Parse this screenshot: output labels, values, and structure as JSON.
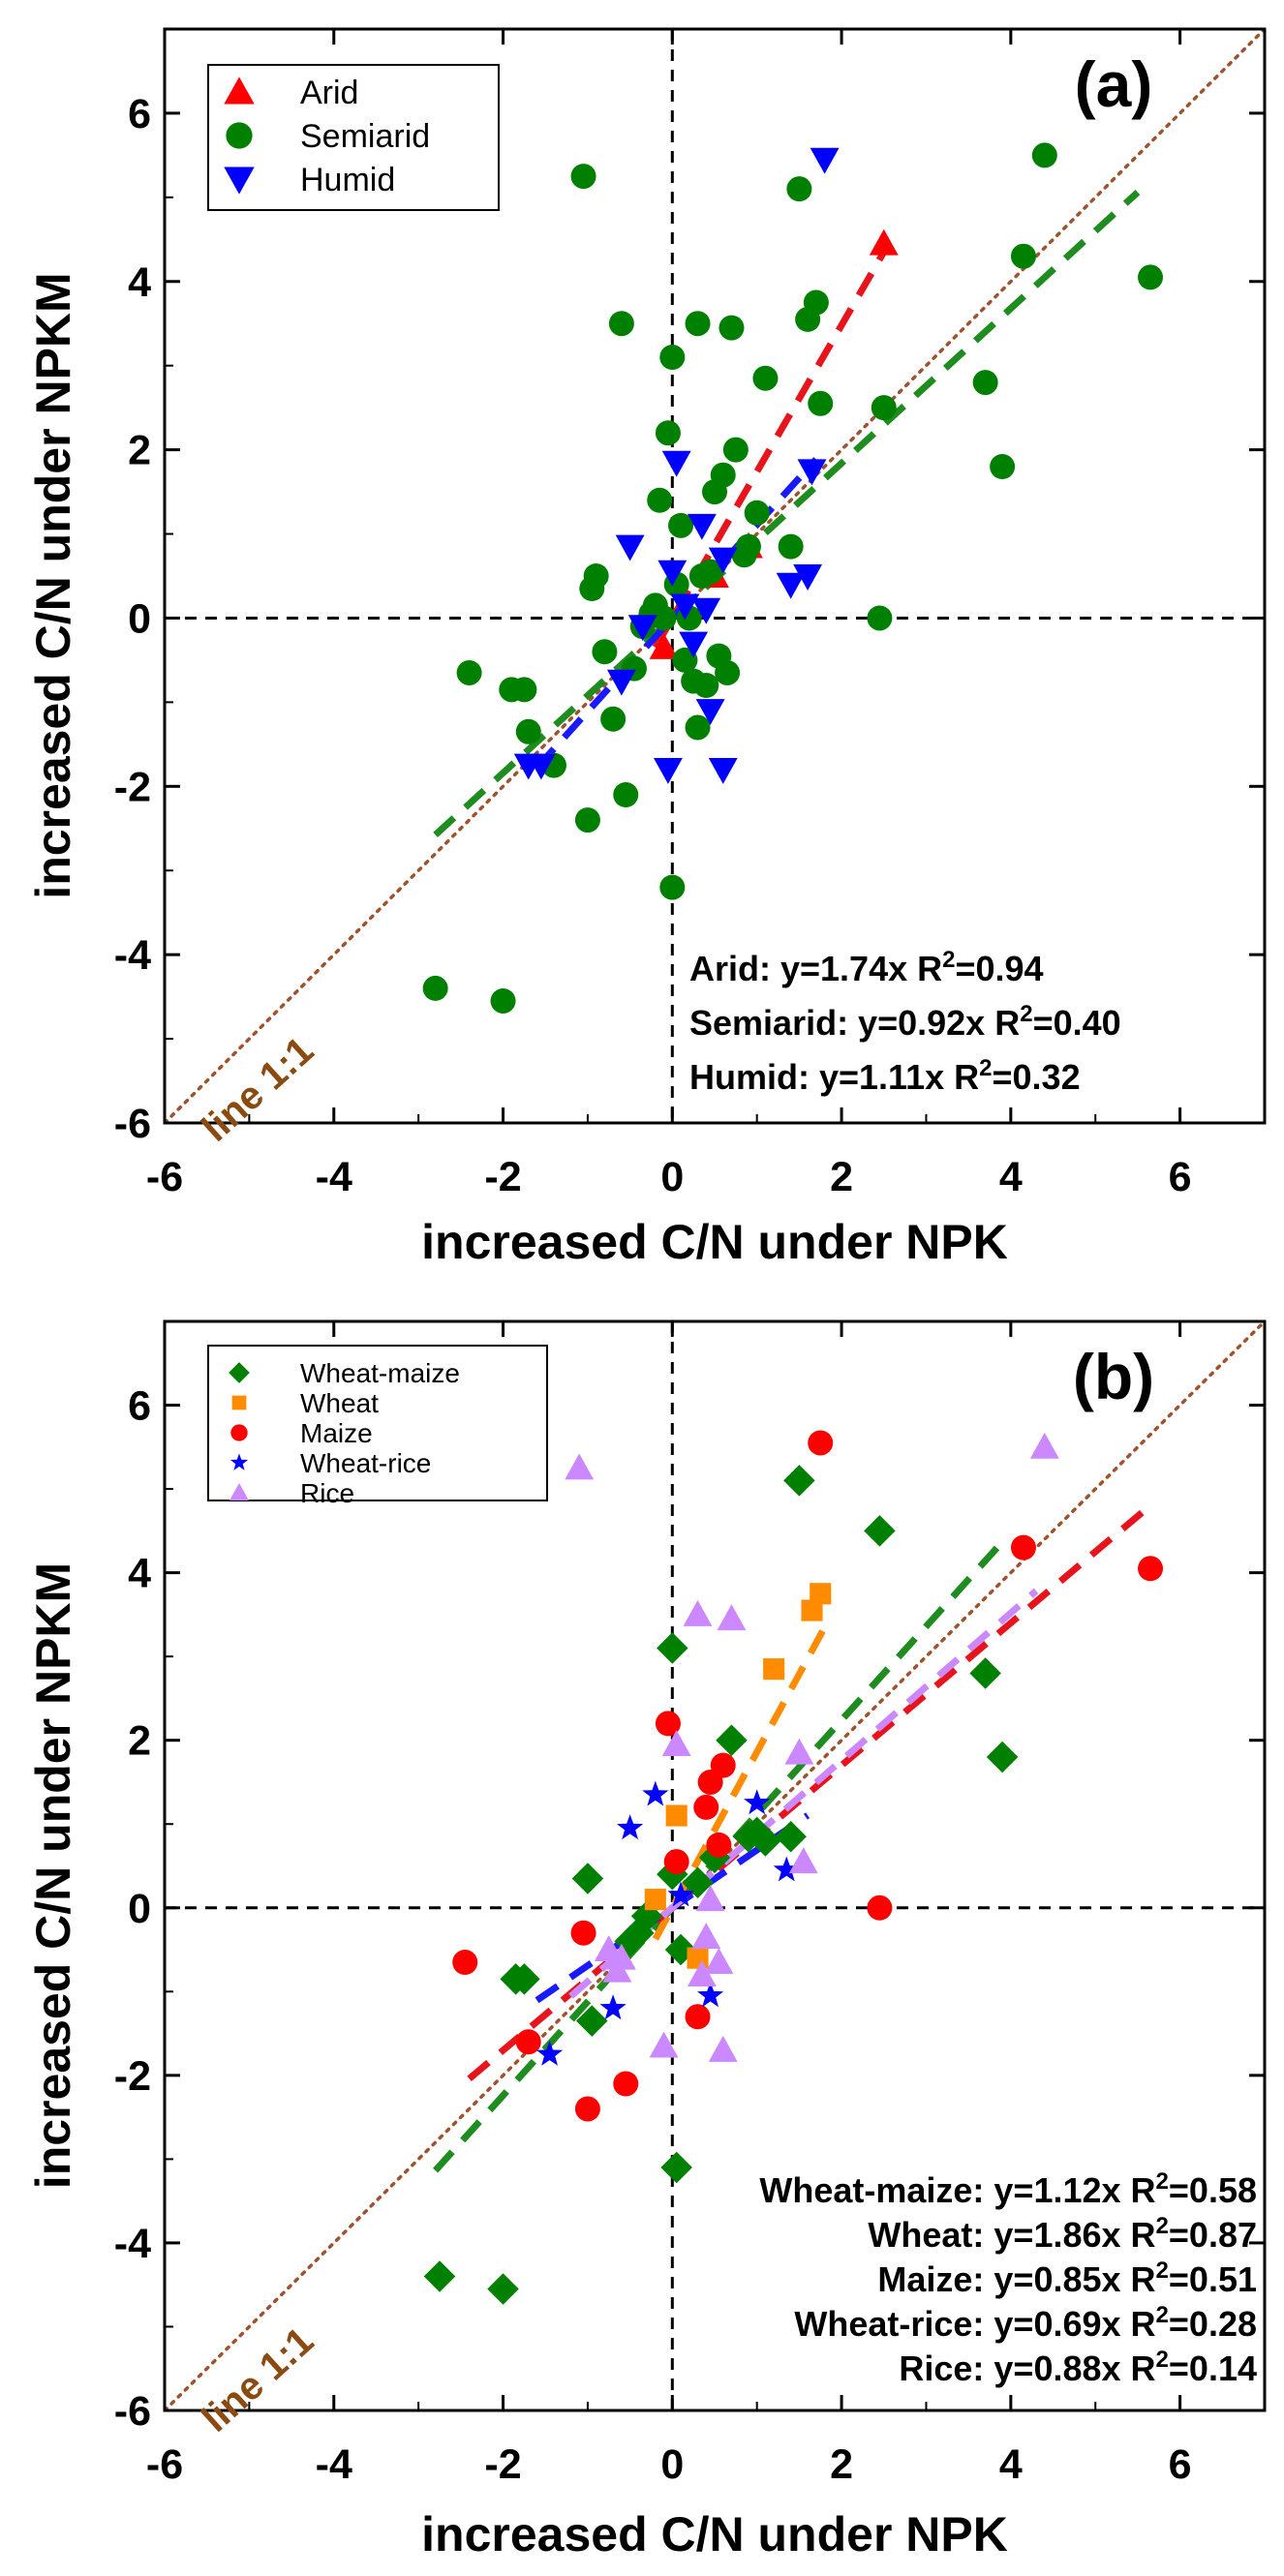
{
  "chart_data": [
    {
      "type": "scatter",
      "panel_label": "(a)",
      "xlabel": "increased C/N under NPK",
      "ylabel": "increased C/N under NPKM",
      "xlim": [
        -6,
        7
      ],
      "ylim": [
        -6,
        7
      ],
      "xticks": [
        "-6",
        "-4",
        "-2",
        "0",
        "2",
        "4",
        "6"
      ],
      "yticks": [
        "-6",
        "-4",
        "-2",
        "0",
        "2",
        "4",
        "6"
      ],
      "one_to_one_label": "line 1:1",
      "legend_position": "top-left",
      "colors": {
        "one_to_one": "#a0522d",
        "zero_lines": "#000000"
      },
      "series": [
        {
          "name": "Arid",
          "marker": "triangle-up",
          "color": "#ff0000",
          "fit_color": "#e8141c",
          "slope": 1.74,
          "fit_x_range": [
            -0.2,
            2.5
          ],
          "equation": "Arid: y=1.74x R",
          "r2_value": "=0.94",
          "points": [
            [
              2.5,
              4.45
            ],
            [
              0.5,
              0.5
            ],
            [
              0.9,
              0.85
            ],
            [
              -0.1,
              -0.35
            ]
          ]
        },
        {
          "name": "Semiarid",
          "marker": "circle",
          "color": "#008000",
          "fit_color": "#1e8c1e",
          "slope": 0.92,
          "fit_x_range": [
            -2.8,
            5.5
          ],
          "equation": "Semiarid: y=0.92x R",
          "r2_value": "=0.40",
          "points": [
            [
              -2.8,
              -4.4
            ],
            [
              -2.0,
              -4.55
            ],
            [
              -2.4,
              -0.65
            ],
            [
              -1.9,
              -0.85
            ],
            [
              -1.75,
              -0.85
            ],
            [
              -1.7,
              -1.35
            ],
            [
              -1.4,
              -1.75
            ],
            [
              -1.05,
              5.25
            ],
            [
              -1.0,
              -2.4
            ],
            [
              -0.95,
              0.35
            ],
            [
              -0.9,
              0.5
            ],
            [
              -0.8,
              -0.4
            ],
            [
              -0.7,
              -1.2
            ],
            [
              -0.6,
              3.5
            ],
            [
              -0.55,
              -2.1
            ],
            [
              -0.45,
              -0.6
            ],
            [
              -0.35,
              -0.1
            ],
            [
              -0.25,
              0.05
            ],
            [
              -0.2,
              0.15
            ],
            [
              -0.15,
              1.4
            ],
            [
              -0.1,
              0.0
            ],
            [
              -0.05,
              2.2
            ],
            [
              0.0,
              3.1
            ],
            [
              0.0,
              -3.2
            ],
            [
              0.05,
              0.4
            ],
            [
              0.1,
              1.1
            ],
            [
              0.15,
              -0.5
            ],
            [
              0.2,
              0.0
            ],
            [
              0.25,
              -0.75
            ],
            [
              0.3,
              3.5
            ],
            [
              0.3,
              -1.3
            ],
            [
              0.35,
              0.5
            ],
            [
              0.4,
              -0.8
            ],
            [
              0.45,
              0.55
            ],
            [
              0.5,
              1.5
            ],
            [
              0.55,
              -0.45
            ],
            [
              0.6,
              1.7
            ],
            [
              0.65,
              -0.65
            ],
            [
              0.7,
              3.45
            ],
            [
              0.75,
              2.0
            ],
            [
              0.85,
              0.75
            ],
            [
              0.9,
              0.85
            ],
            [
              1.0,
              1.25
            ],
            [
              1.1,
              2.85
            ],
            [
              1.4,
              0.85
            ],
            [
              1.5,
              5.1
            ],
            [
              1.6,
              3.55
            ],
            [
              1.7,
              3.75
            ],
            [
              1.75,
              2.55
            ],
            [
              2.45,
              0.0
            ],
            [
              2.5,
              2.5
            ],
            [
              3.7,
              2.8
            ],
            [
              3.9,
              1.8
            ],
            [
              4.15,
              4.3
            ],
            [
              4.4,
              5.5
            ],
            [
              5.65,
              4.05
            ]
          ]
        },
        {
          "name": "Humid",
          "marker": "triangle-down",
          "color": "#0000ff",
          "fit_color": "#1a1aff",
          "slope": 1.11,
          "fit_x_range": [
            -1.6,
            1.7
          ],
          "equation": "Humid: y=1.11x R",
          "r2_value": "=0.32",
          "points": [
            [
              -1.7,
              -1.75
            ],
            [
              -1.55,
              -1.75
            ],
            [
              -0.6,
              -0.75
            ],
            [
              -0.5,
              0.85
            ],
            [
              -0.35,
              -0.1
            ],
            [
              -0.05,
              -1.8
            ],
            [
              0.0,
              0.55
            ],
            [
              0.05,
              1.85
            ],
            [
              0.15,
              0.15
            ],
            [
              0.25,
              -0.3
            ],
            [
              0.35,
              1.1
            ],
            [
              0.4,
              0.1
            ],
            [
              0.45,
              -1.1
            ],
            [
              0.6,
              -1.8
            ],
            [
              0.6,
              0.7
            ],
            [
              1.4,
              0.4
            ],
            [
              1.6,
              0.5
            ],
            [
              1.65,
              1.75
            ],
            [
              1.8,
              5.45
            ]
          ]
        }
      ]
    },
    {
      "type": "scatter",
      "panel_label": "(b)",
      "xlabel": "increased C/N under NPK",
      "ylabel": "increased C/N under NPKM",
      "xlim": [
        -6,
        7
      ],
      "ylim": [
        -6,
        7
      ],
      "xticks": [
        "-6",
        "-4",
        "-2",
        "0",
        "2",
        "4",
        "6"
      ],
      "yticks": [
        "-6",
        "-4",
        "-2",
        "0",
        "2",
        "4",
        "6"
      ],
      "one_to_one_label": "line 1:1",
      "legend_position": "top-left",
      "colors": {
        "one_to_one": "#a0522d",
        "zero_lines": "#000000"
      },
      "series": [
        {
          "name": "Wheat-maize",
          "marker": "diamond",
          "color": "#008000",
          "fit_color": "#1e8c1e",
          "slope": 1.12,
          "fit_x_range": [
            -2.8,
            3.9
          ],
          "equation": "Wheat-maize: y=1.12x R",
          "r2_value": "=0.58",
          "points": [
            [
              -2.75,
              -4.4
            ],
            [
              -2.0,
              -4.55
            ],
            [
              -1.85,
              -0.85
            ],
            [
              -1.75,
              -0.85
            ],
            [
              -1.0,
              0.35
            ],
            [
              -0.95,
              -1.35
            ],
            [
              -0.5,
              -0.4
            ],
            [
              -0.4,
              -0.3
            ],
            [
              -0.3,
              -0.1
            ],
            [
              0.0,
              3.1
            ],
            [
              0.0,
              0.4
            ],
            [
              0.05,
              -3.1
            ],
            [
              0.1,
              -0.5
            ],
            [
              0.3,
              0.3
            ],
            [
              0.5,
              0.6
            ],
            [
              0.7,
              2.0
            ],
            [
              0.9,
              0.85
            ],
            [
              1.0,
              0.9
            ],
            [
              1.1,
              0.8
            ],
            [
              1.4,
              0.85
            ],
            [
              1.5,
              5.1
            ],
            [
              2.45,
              4.5
            ],
            [
              3.7,
              2.8
            ],
            [
              3.9,
              1.8
            ]
          ]
        },
        {
          "name": "Wheat",
          "marker": "square",
          "color": "#ff8c00",
          "fit_color": "#ff8c00",
          "slope": 1.86,
          "fit_x_range": [
            -0.2,
            1.8
          ],
          "equation": "Wheat: y=1.86x R",
          "r2_value": "=0.87",
          "points": [
            [
              -0.2,
              0.1
            ],
            [
              0.05,
              1.1
            ],
            [
              0.3,
              -0.6
            ],
            [
              1.2,
              2.85
            ],
            [
              1.65,
              3.55
            ],
            [
              1.75,
              3.75
            ]
          ]
        },
        {
          "name": "Maize",
          "marker": "circle",
          "color": "#ff0000",
          "fit_color": "#e8141c",
          "slope": 0.85,
          "fit_x_range": [
            -2.4,
            5.6
          ],
          "equation": "Maize: y=0.85x R",
          "r2_value": "=0.51",
          "points": [
            [
              -2.45,
              -0.65
            ],
            [
              -1.7,
              -1.6
            ],
            [
              -1.05,
              -0.3
            ],
            [
              -1.0,
              -2.4
            ],
            [
              -0.55,
              -2.1
            ],
            [
              -0.05,
              2.2
            ],
            [
              0.05,
              0.55
            ],
            [
              0.3,
              -1.3
            ],
            [
              0.4,
              1.2
            ],
            [
              0.45,
              1.5
            ],
            [
              0.6,
              1.7
            ],
            [
              0.55,
              0.75
            ],
            [
              1.75,
              5.55
            ],
            [
              2.45,
              0.0
            ],
            [
              4.15,
              4.3
            ],
            [
              5.65,
              4.05
            ]
          ]
        },
        {
          "name": "Wheat-rice",
          "marker": "star",
          "color": "#0000ff",
          "fit_color": "#1a1aff",
          "slope": 0.69,
          "fit_x_range": [
            -1.6,
            1.6
          ],
          "equation": "Wheat-rice: y=0.69x R",
          "r2_value": "=0.28",
          "points": [
            [
              -1.45,
              -1.75
            ],
            [
              -0.7,
              -1.2
            ],
            [
              -0.5,
              0.95
            ],
            [
              -0.2,
              1.35
            ],
            [
              0.45,
              -1.05
            ],
            [
              1.0,
              1.25
            ],
            [
              1.35,
              0.45
            ],
            [
              0.1,
              0.15
            ]
          ]
        },
        {
          "name": "Rice",
          "marker": "triangle-up",
          "color": "#cc88ff",
          "fit_color": "#cc88ff",
          "slope": 0.88,
          "fit_x_range": [
            -1.2,
            4.3
          ],
          "equation": "Rice: y=0.88x R",
          "r2_value": "=0.14",
          "points": [
            [
              -1.1,
              5.25
            ],
            [
              -0.75,
              -0.5
            ],
            [
              -0.65,
              -0.75
            ],
            [
              -0.6,
              -0.6
            ],
            [
              -0.1,
              -1.65
            ],
            [
              0.05,
              1.95
            ],
            [
              0.3,
              3.5
            ],
            [
              0.35,
              -0.8
            ],
            [
              0.4,
              -0.35
            ],
            [
              0.45,
              0.1
            ],
            [
              0.55,
              -0.65
            ],
            [
              0.6,
              -1.7
            ],
            [
              0.7,
              3.45
            ],
            [
              1.5,
              1.85
            ],
            [
              1.55,
              0.55
            ],
            [
              4.4,
              5.5
            ]
          ]
        }
      ]
    }
  ]
}
